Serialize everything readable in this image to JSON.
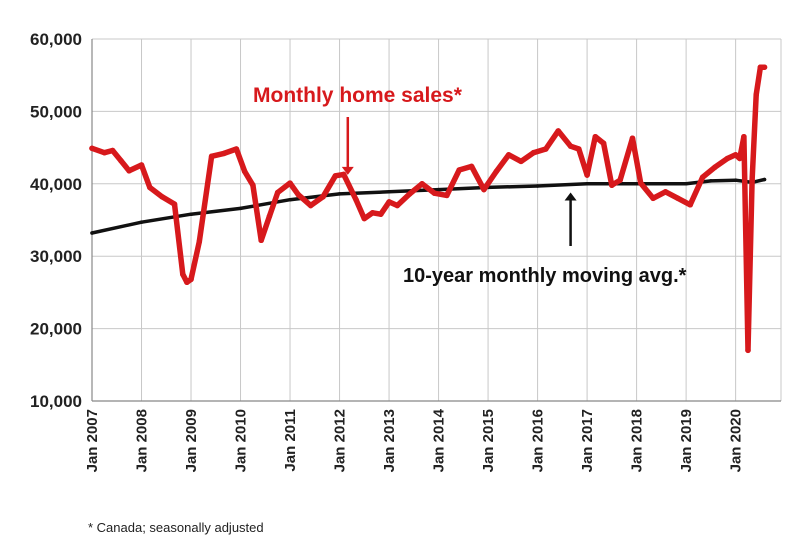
{
  "colors": {
    "sales": "#d7191c",
    "average": "#111111",
    "grid": "#c8c8c8",
    "axis": "#888888"
  },
  "chart_data": {
    "type": "line",
    "title": "",
    "xlabel": "",
    "ylabel": "",
    "ylim": [
      10000,
      60000
    ],
    "yticks": [
      10000,
      20000,
      30000,
      40000,
      50000,
      60000
    ],
    "ytick_labels": [
      "10,000",
      "20,000",
      "30,000",
      "40,000",
      "50,000",
      "60,000"
    ],
    "xlim": [
      "2007-01",
      "2020-12"
    ],
    "xtick_labels": [
      "Jan 2007",
      "Jan 2008",
      "Jan 2009",
      "Jan 2010",
      "Jan 2011",
      "Jan 2012",
      "Jan 2013",
      "Jan 2014",
      "Jan 2015",
      "Jan 2016",
      "Jan 2017",
      "Jan 2018",
      "Jan 2019",
      "Jan 2020"
    ],
    "grid": true,
    "legend": "none",
    "annotations": [
      {
        "text": "Monthly home sales*",
        "series": "sales",
        "points_to": "2012-03"
      },
      {
        "text": "10-year monthly moving avg.*",
        "series": "average",
        "points_to": "2016-09"
      }
    ],
    "footnote": "* Canada; seasonally adjusted",
    "series": [
      {
        "key": "sales",
        "name": "Monthly home sales*",
        "x": [
          "2007-01",
          "2007-04",
          "2007-06",
          "2007-08",
          "2007-10",
          "2008-01",
          "2008-03",
          "2008-06",
          "2008-09",
          "2008-11",
          "2008-12",
          "2009-01",
          "2009-03",
          "2009-06",
          "2009-09",
          "2009-12",
          "2010-02",
          "2010-04",
          "2010-06",
          "2010-08",
          "2010-10",
          "2011-01",
          "2011-03",
          "2011-06",
          "2011-09",
          "2011-12",
          "2012-02",
          "2012-05",
          "2012-07",
          "2012-09",
          "2012-11",
          "2013-01",
          "2013-03",
          "2013-06",
          "2013-09",
          "2013-12",
          "2014-03",
          "2014-06",
          "2014-09",
          "2014-12",
          "2015-03",
          "2015-06",
          "2015-09",
          "2015-12",
          "2016-03",
          "2016-06",
          "2016-09",
          "2016-11",
          "2017-01",
          "2017-03",
          "2017-05",
          "2017-07",
          "2017-09",
          "2017-12",
          "2018-02",
          "2018-05",
          "2018-08",
          "2018-11",
          "2019-02",
          "2019-05",
          "2019-08",
          "2019-11",
          "2020-01",
          "2020-02",
          "2020-03",
          "2020-04",
          "2020-05",
          "2020-06",
          "2020-07",
          "2020-08"
        ],
        "values": [
          44900,
          44300,
          44600,
          43200,
          41800,
          42600,
          39500,
          38200,
          37200,
          27500,
          26400,
          26800,
          32000,
          43800,
          44200,
          44800,
          41700,
          39800,
          32200,
          35500,
          38800,
          40100,
          38500,
          37000,
          38200,
          41100,
          41300,
          37800,
          35200,
          36000,
          35800,
          37500,
          37000,
          38600,
          40000,
          38700,
          38400,
          41900,
          42400,
          39200,
          41700,
          44000,
          43100,
          44300,
          44800,
          47300,
          45200,
          44800,
          41200,
          46500,
          45600,
          39800,
          40500,
          46300,
          40100,
          38000,
          38900,
          38000,
          37100,
          40900,
          42300,
          43500,
          44000,
          43500,
          46500,
          17000,
          40500,
          52300,
          56100,
          56100
        ]
      },
      {
        "key": "average",
        "name": "10-year monthly moving avg.*",
        "x": [
          "2007-01",
          "2008-01",
          "2009-01",
          "2010-01",
          "2011-01",
          "2012-01",
          "2013-01",
          "2014-01",
          "2015-01",
          "2016-01",
          "2017-01",
          "2018-01",
          "2019-01",
          "2019-07",
          "2020-01",
          "2020-05",
          "2020-08"
        ],
        "values": [
          33200,
          34700,
          35800,
          36600,
          37800,
          38600,
          38900,
          39200,
          39500,
          39700,
          40000,
          40000,
          40000,
          40400,
          40500,
          40200,
          40600
        ]
      }
    ]
  }
}
